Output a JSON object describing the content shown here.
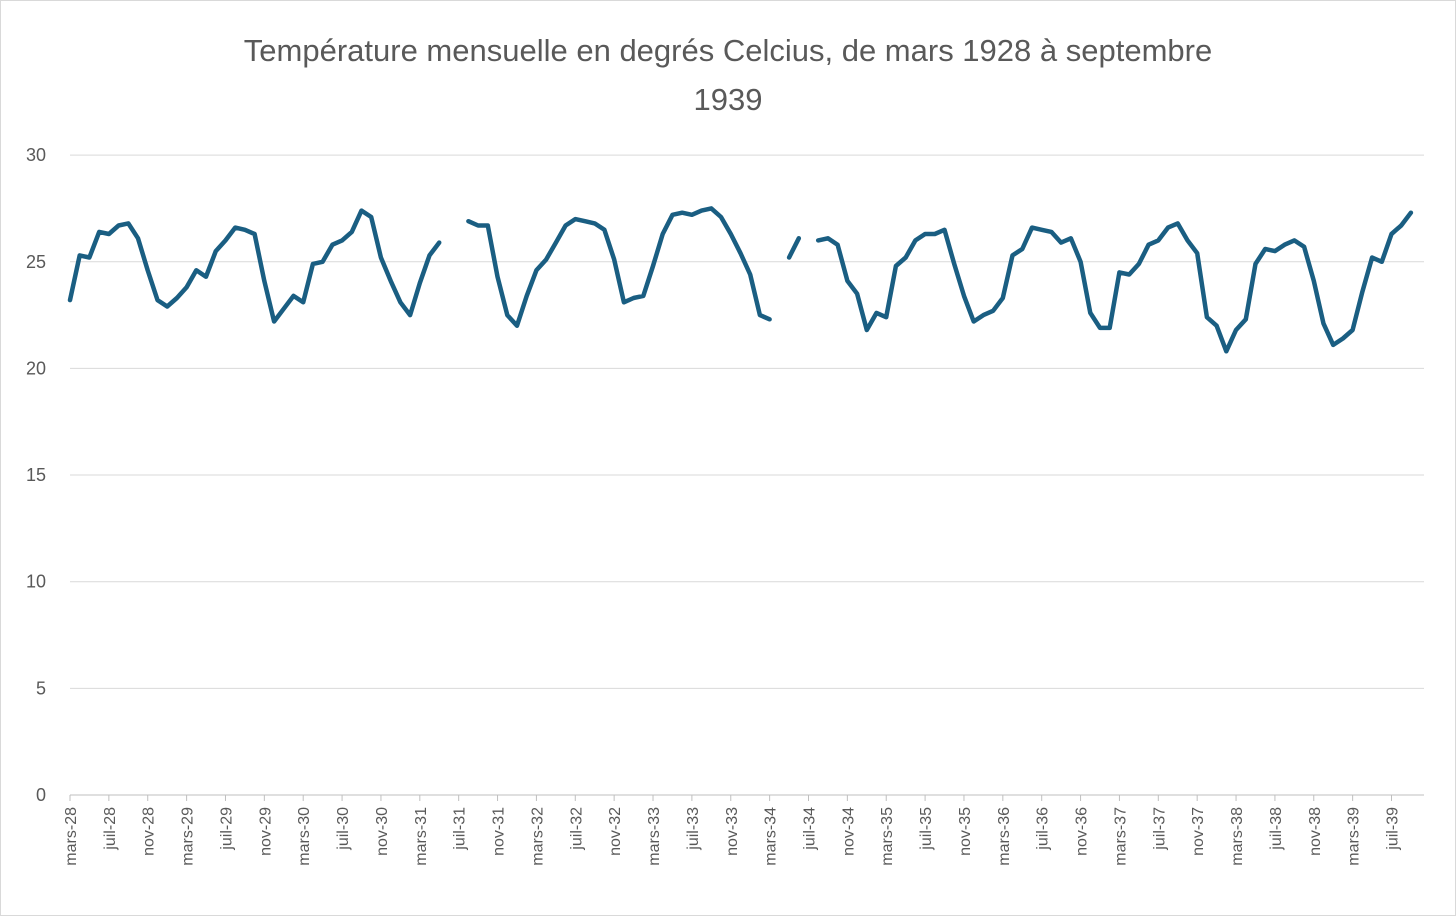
{
  "chart_data": {
    "type": "line",
    "title": "Température mensuelle en degrés Celcius, de mars 1928 à septembre 1939",
    "xlabel": "",
    "ylabel": "",
    "ylim": [
      0,
      30
    ],
    "yticks": [
      0,
      5,
      10,
      15,
      20,
      25,
      30
    ],
    "grid": true,
    "legend": "none",
    "line_color": "#1a5e82",
    "x_start": "mars-28",
    "x_end": "sept-39",
    "x_tick_labels": [
      "mars-28",
      "juil-28",
      "nov-28",
      "mars-29",
      "juil-29",
      "nov-29",
      "mars-30",
      "juil-30",
      "nov-30",
      "mars-31",
      "juil-31",
      "nov-31",
      "mars-32",
      "juil-32",
      "nov-32",
      "mars-33",
      "juil-33",
      "nov-33",
      "mars-34",
      "juil-34",
      "nov-34",
      "mars-35",
      "juil-35",
      "nov-35",
      "mars-36",
      "juil-36",
      "nov-36",
      "mars-37",
      "juil-37",
      "nov-37",
      "mars-38",
      "juil-38",
      "nov-38",
      "mars-39",
      "juil-39"
    ],
    "series": [
      {
        "values": [
          23.2,
          25.3,
          25.2,
          26.4,
          26.3,
          26.7,
          26.8,
          26.1,
          24.6,
          23.2,
          22.9,
          23.3,
          23.8,
          24.6,
          24.3,
          25.5,
          26.0,
          26.6,
          26.5,
          26.3,
          24.1,
          22.2,
          22.8,
          23.4,
          23.1,
          24.9,
          25.0,
          25.8,
          26.0,
          26.4,
          27.4,
          27.1,
          25.2,
          24.1,
          23.1,
          22.5,
          24.0,
          25.3,
          25.9,
          null,
          null,
          26.9,
          26.7,
          26.7,
          24.3,
          22.5,
          22.0,
          23.4,
          24.6,
          25.1,
          25.9,
          26.7,
          27.0,
          26.9,
          26.8,
          26.5,
          25.1,
          23.1,
          23.3,
          23.4,
          24.8,
          26.3,
          27.2,
          27.3,
          27.2,
          27.4,
          27.5,
          27.1,
          26.3,
          25.4,
          24.4,
          22.5,
          22.3,
          null,
          25.2,
          26.1,
          null,
          26.0,
          26.1,
          25.8,
          24.1,
          23.5,
          21.8,
          22.6,
          22.4,
          24.8,
          25.2,
          26.0,
          26.3,
          26.3,
          26.5,
          24.9,
          23.4,
          22.2,
          22.5,
          22.7,
          23.3,
          25.3,
          25.6,
          26.6,
          26.5,
          26.4,
          25.9,
          26.1,
          25.0,
          22.6,
          21.9,
          21.9,
          24.5,
          24.4,
          24.9,
          25.8,
          26.0,
          26.6,
          26.8,
          26.0,
          25.4,
          22.4,
          22.0,
          20.8,
          21.8,
          22.3,
          24.9,
          25.6,
          25.5,
          25.8,
          26.0,
          25.7,
          24.1,
          22.1,
          21.1,
          21.4,
          21.8,
          23.6,
          25.2,
          25.0,
          26.3,
          26.7,
          27.3
        ]
      }
    ]
  }
}
